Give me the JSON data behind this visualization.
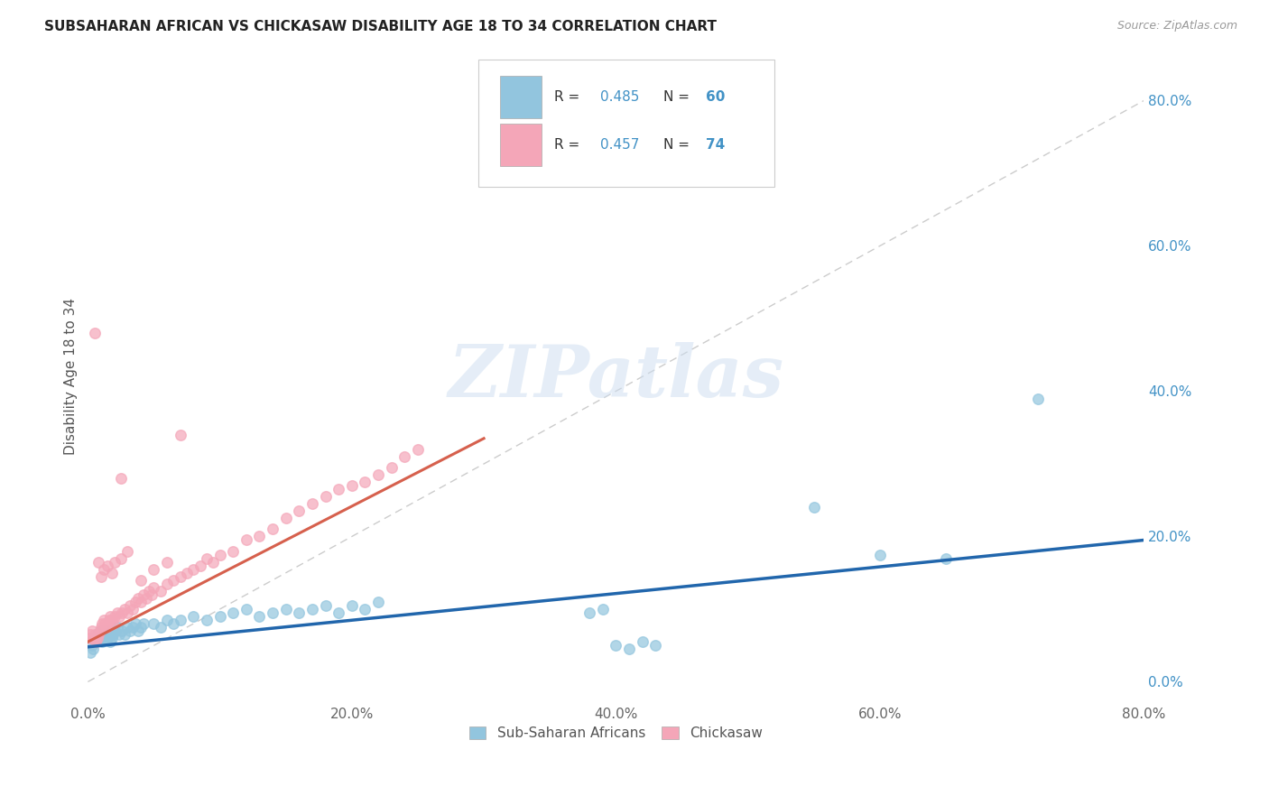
{
  "title": "SUBSAHARAN AFRICAN VS CHICKASAW DISABILITY AGE 18 TO 34 CORRELATION CHART",
  "source": "Source: ZipAtlas.com",
  "ylabel": "Disability Age 18 to 34",
  "xlim": [
    0.0,
    0.8
  ],
  "ylim": [
    -0.03,
    0.87
  ],
  "xticks": [
    0.0,
    0.2,
    0.4,
    0.6,
    0.8
  ],
  "xtick_labels": [
    "0.0%",
    "20.0%",
    "40.0%",
    "60.0%",
    "80.0%"
  ],
  "ytick_labels_right": [
    "0.0%",
    "20.0%",
    "40.0%",
    "60.0%",
    "80.0%"
  ],
  "yticks_right": [
    0.0,
    0.2,
    0.4,
    0.6,
    0.8
  ],
  "blue_color": "#92c5de",
  "pink_color": "#f4a6b8",
  "blue_line_color": "#2166ac",
  "pink_line_color": "#d6604d",
  "dashed_line_color": "#cccccc",
  "watermark": "ZIPatlas",
  "bottom_legend": [
    {
      "label": "Sub-Saharan Africans",
      "color": "#92c5de"
    },
    {
      "label": "Chickasaw",
      "color": "#f4a6b8"
    }
  ],
  "blue_R": "0.485",
  "blue_N": "60",
  "pink_R": "0.457",
  "pink_N": "74",
  "blue_scatter_x": [
    0.002,
    0.003,
    0.004,
    0.005,
    0.006,
    0.007,
    0.008,
    0.009,
    0.01,
    0.011,
    0.012,
    0.013,
    0.014,
    0.015,
    0.016,
    0.017,
    0.018,
    0.019,
    0.02,
    0.022,
    0.024,
    0.026,
    0.028,
    0.03,
    0.032,
    0.034,
    0.036,
    0.038,
    0.04,
    0.042,
    0.05,
    0.055,
    0.06,
    0.065,
    0.07,
    0.08,
    0.09,
    0.1,
    0.11,
    0.12,
    0.13,
    0.14,
    0.15,
    0.16,
    0.17,
    0.18,
    0.19,
    0.2,
    0.21,
    0.22,
    0.38,
    0.39,
    0.4,
    0.41,
    0.42,
    0.43,
    0.55,
    0.6,
    0.65,
    0.72
  ],
  "blue_scatter_y": [
    0.04,
    0.05,
    0.045,
    0.06,
    0.055,
    0.065,
    0.06,
    0.07,
    0.065,
    0.055,
    0.06,
    0.065,
    0.07,
    0.06,
    0.065,
    0.055,
    0.06,
    0.065,
    0.07,
    0.075,
    0.065,
    0.07,
    0.065,
    0.075,
    0.07,
    0.075,
    0.08,
    0.07,
    0.075,
    0.08,
    0.08,
    0.075,
    0.085,
    0.08,
    0.085,
    0.09,
    0.085,
    0.09,
    0.095,
    0.1,
    0.09,
    0.095,
    0.1,
    0.095,
    0.1,
    0.105,
    0.095,
    0.105,
    0.1,
    0.11,
    0.095,
    0.1,
    0.05,
    0.045,
    0.055,
    0.05,
    0.24,
    0.175,
    0.17,
    0.39
  ],
  "pink_scatter_x": [
    0.001,
    0.002,
    0.003,
    0.004,
    0.005,
    0.006,
    0.007,
    0.008,
    0.009,
    0.01,
    0.011,
    0.012,
    0.013,
    0.014,
    0.015,
    0.016,
    0.017,
    0.018,
    0.019,
    0.02,
    0.022,
    0.024,
    0.026,
    0.028,
    0.03,
    0.032,
    0.034,
    0.036,
    0.038,
    0.04,
    0.042,
    0.044,
    0.046,
    0.048,
    0.05,
    0.055,
    0.06,
    0.065,
    0.07,
    0.075,
    0.08,
    0.085,
    0.09,
    0.095,
    0.1,
    0.11,
    0.12,
    0.13,
    0.14,
    0.15,
    0.16,
    0.17,
    0.18,
    0.19,
    0.2,
    0.21,
    0.22,
    0.23,
    0.24,
    0.25,
    0.01,
    0.012,
    0.015,
    0.018,
    0.02,
    0.025,
    0.03,
    0.025,
    0.005,
    0.008,
    0.04,
    0.05,
    0.06,
    0.07
  ],
  "pink_scatter_y": [
    0.06,
    0.065,
    0.07,
    0.06,
    0.065,
    0.055,
    0.06,
    0.065,
    0.07,
    0.075,
    0.08,
    0.085,
    0.08,
    0.075,
    0.08,
    0.085,
    0.09,
    0.085,
    0.08,
    0.09,
    0.095,
    0.09,
    0.095,
    0.1,
    0.095,
    0.105,
    0.1,
    0.11,
    0.115,
    0.11,
    0.12,
    0.115,
    0.125,
    0.12,
    0.13,
    0.125,
    0.135,
    0.14,
    0.145,
    0.15,
    0.155,
    0.16,
    0.17,
    0.165,
    0.175,
    0.18,
    0.195,
    0.2,
    0.21,
    0.225,
    0.235,
    0.245,
    0.255,
    0.265,
    0.27,
    0.275,
    0.285,
    0.295,
    0.31,
    0.32,
    0.145,
    0.155,
    0.16,
    0.15,
    0.165,
    0.17,
    0.18,
    0.28,
    0.48,
    0.165,
    0.14,
    0.155,
    0.165,
    0.34
  ]
}
